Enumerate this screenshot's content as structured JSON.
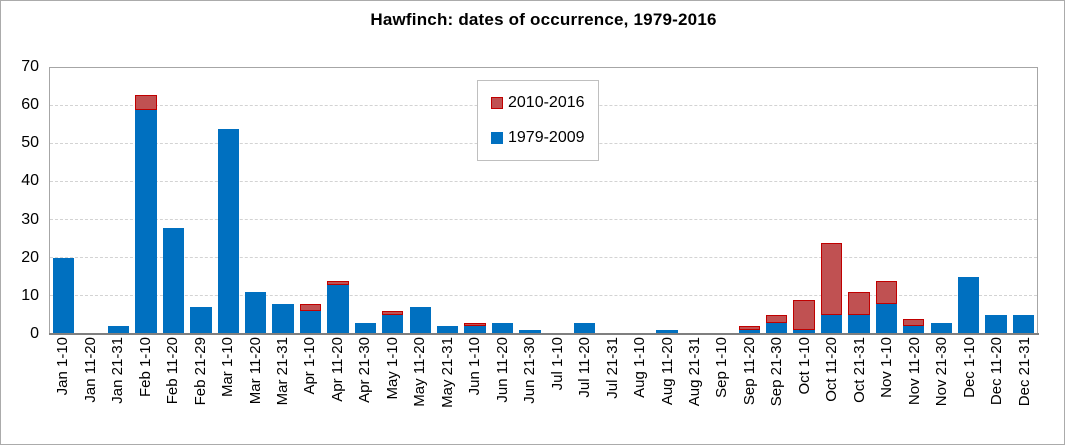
{
  "title": "Hawfinch: dates of occurrence, 1979-2016",
  "legend": {
    "items": [
      {
        "label": "2010-2016",
        "color": "#C05152",
        "border_color": "#C00000"
      },
      {
        "label": "1979-2009",
        "color": "#0070C0",
        "border_color": "#0070C0"
      }
    ]
  },
  "colors": {
    "blue_series": "#0070C0",
    "red_series_fill": "#C05152",
    "red_series_border": "#C00000",
    "gridline": "#D3D3D3",
    "plot_border": "#A6A6A6",
    "axis_line": "#7F7F7F"
  },
  "chart_data": {
    "type": "bar",
    "stacked": true,
    "title": "Hawfinch: dates of occurrence, 1979-2016",
    "xlabel": "",
    "ylabel": "",
    "ylim": [
      0,
      70
    ],
    "yticks": [
      0,
      10,
      20,
      30,
      40,
      50,
      60,
      70
    ],
    "grid": true,
    "legend_position": "upper center-right inside plot",
    "categories": [
      "Jan 1-10",
      "Jan 11-20",
      "Jan 21-31",
      "Feb 1-10",
      "Feb 11-20",
      "Feb 21-29",
      "Mar 1-10",
      "Mar 11-20",
      "Mar 21-31",
      "Apr 1-10",
      "Apr 11-20",
      "Apr 21-30",
      "May 1-10",
      "May 11-20",
      "May 21-31",
      "Jun 1-10",
      "Jun 11-20",
      "Jun 21-30",
      "Jul 1-10",
      "Jul 11-20",
      "Jul 21-31",
      "Aug 1-10",
      "Aug 11-20",
      "Aug 21-31",
      "Sep 1-10",
      "Sep 11-20",
      "Sep 21-30",
      "Oct 1-10",
      "Oct 11-20",
      "Oct 21-31",
      "Nov 1-10",
      "Nov 11-20",
      "Nov 21-30",
      "Dec 1-10",
      "Dec 11-20",
      "Dec 21-31"
    ],
    "series": [
      {
        "name": "1979-2009",
        "color": "#0070C0",
        "values": [
          20,
          0,
          2,
          59,
          28,
          7,
          54,
          11,
          8,
          6,
          13,
          3,
          5,
          7,
          2,
          2,
          3,
          1,
          0,
          3,
          0,
          0,
          1,
          0,
          0,
          1,
          3,
          1,
          5,
          5,
          8,
          2,
          3,
          15,
          5,
          5
        ]
      },
      {
        "name": "2010-2016",
        "color": "#C05152",
        "border_color": "#C00000",
        "values": [
          0,
          0,
          0,
          4,
          0,
          0,
          0,
          0,
          0,
          2,
          1,
          0,
          1,
          0,
          0,
          1,
          0,
          0,
          0,
          0,
          0,
          0,
          0,
          0,
          0,
          1,
          2,
          8,
          19,
          6,
          6,
          2,
          0,
          0,
          0,
          0
        ]
      }
    ],
    "totals": [
      20,
      0,
      2,
      63,
      28,
      7,
      54,
      11,
      8,
      8,
      14,
      3,
      6,
      7,
      2,
      3,
      3,
      1,
      0,
      3,
      0,
      0,
      1,
      0,
      0,
      2,
      5,
      9,
      24,
      11,
      14,
      4,
      3,
      15,
      5,
      5
    ]
  }
}
